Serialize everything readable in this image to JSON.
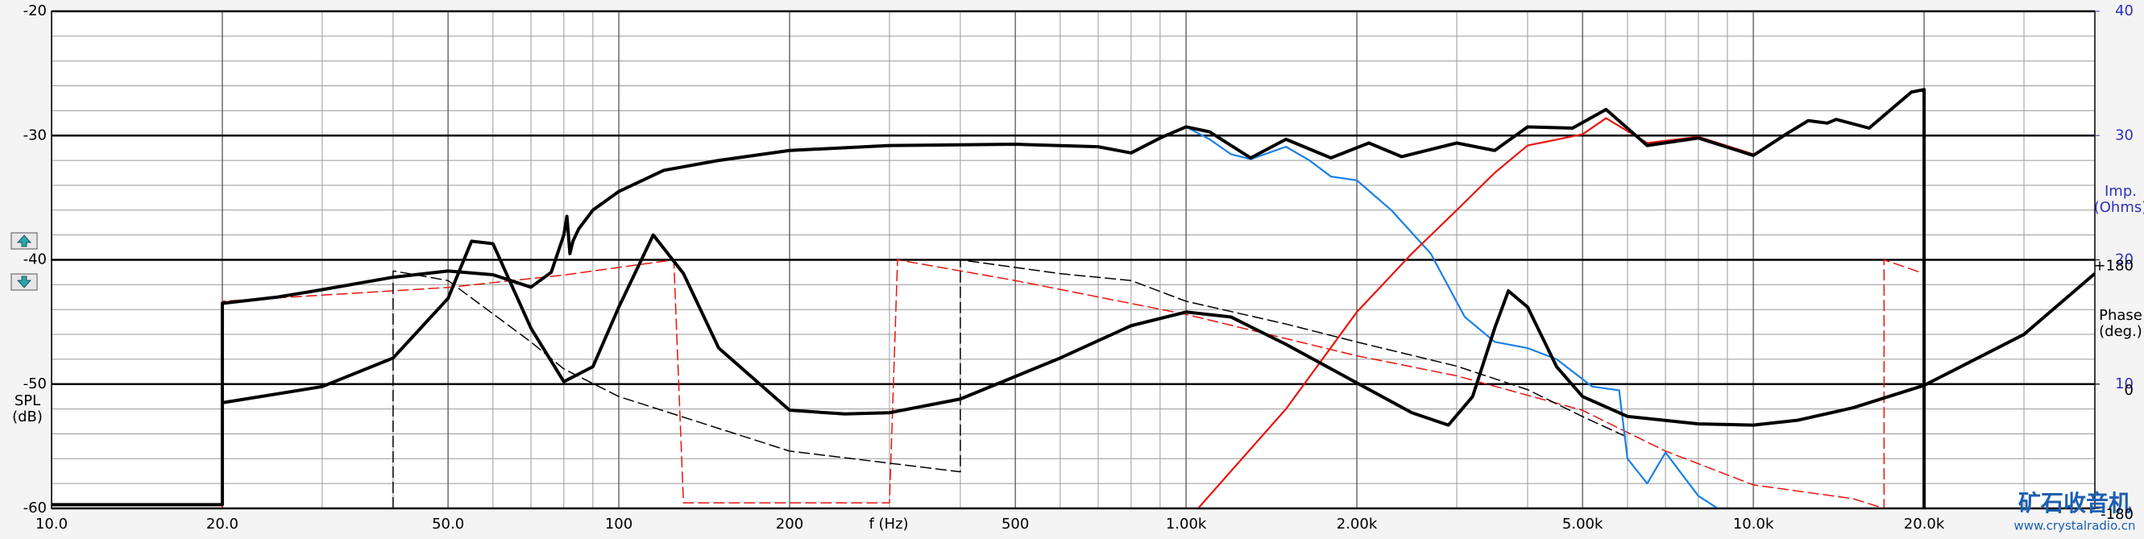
{
  "chart_data": {
    "type": "line",
    "x_label": "f (Hz)",
    "y_label": [
      "SPL",
      "(dB)"
    ],
    "y2_label": [
      "Imp.",
      "(Ohms)"
    ],
    "phase_label": [
      "Phase",
      "(deg.)"
    ],
    "watermark": [
      "矿石收音机",
      "www.crystalradio.cn"
    ],
    "log_x": true,
    "grid": true,
    "xlim": [
      10,
      40000
    ],
    "xticks": [
      {
        "value": 10,
        "label": "10.0"
      },
      {
        "value": 20,
        "label": "20.0"
      },
      {
        "value": 50,
        "label": "50.0"
      },
      100,
      200,
      500,
      {
        "value": 1000,
        "label": "1.00k"
      },
      {
        "value": 2000,
        "label": "2.00k"
      },
      {
        "value": 5000,
        "label": "5.00k"
      },
      {
        "value": 10000,
        "label": "10.0k"
      },
      {
        "value": 20000,
        "label": "20.0k"
      }
    ],
    "xgrid": [
      30,
      40,
      60,
      70,
      80,
      90,
      300,
      400,
      600,
      700,
      800,
      900,
      3000,
      4000,
      6000,
      7000,
      8000,
      9000,
      30000
    ],
    "ylim": [
      -60,
      -20
    ],
    "yticks": [
      -60,
      -50,
      -40,
      -30,
      -20
    ],
    "ygrid": [
      -58,
      -56,
      -54,
      -52,
      -48,
      -46,
      -44,
      -42,
      -38,
      -36,
      -34,
      -32,
      -28,
      -26,
      -24,
      -22
    ],
    "y2lim": [
      0,
      40
    ],
    "y2ticks": [
      10,
      20,
      30,
      40
    ],
    "phaselim": [
      -180,
      540
    ],
    "phaseticks": [
      {
        "value": 180,
        "label": "+180"
      },
      0,
      -180
    ],
    "series": [
      {
        "color": "#e8140c",
        "style": "dashed",
        "axis": "phase",
        "x": [
          20,
          20,
          50,
          80,
          125,
          130,
          300,
          310,
          500,
          1000,
          2000,
          3000,
          5000,
          7000,
          10000,
          15000,
          17000,
          17000,
          20000
        ],
        "values": [
          -180,
          120,
          140,
          158,
          180,
          -172,
          -172,
          180,
          150,
          101,
          41,
          12,
          -38,
          -97,
          -146,
          -166,
          -180,
          180,
          160
        ]
      },
      {
        "color": "#000000",
        "style": "dashed",
        "axis": "phase",
        "x": [
          40,
          40,
          50,
          70,
          80,
          100,
          200,
          400,
          400,
          600,
          800,
          1000,
          1500,
          2000,
          3000,
          4000,
          5000,
          6000
        ],
        "values": [
          -180,
          164,
          150,
          61,
          22,
          -18,
          -97,
          -127,
          180,
          160,
          150,
          120,
          87,
          61,
          26,
          -8,
          -47,
          -77
        ]
      },
      {
        "color": "#1a7fe6",
        "style": "solid",
        "x": [
          1000,
          1100,
          1200,
          1300,
          1500,
          1650,
          1800,
          2000,
          2300,
          2700,
          3100,
          3500,
          4000,
          4500,
          5200,
          5800,
          6000,
          6500,
          7000,
          8000,
          9000
        ],
        "values": [
          -29.3,
          -30.3,
          -31.5,
          -31.9,
          -30.9,
          -32,
          -33.3,
          -33.6,
          -36,
          -39.5,
          -44.6,
          -46.6,
          -47.1,
          -48,
          -50.2,
          -50.5,
          -56,
          -58,
          -55.5,
          -59,
          -60.5
        ]
      },
      {
        "color": "#e8140c",
        "style": "solid",
        "x": [
          1050,
          1200,
          1500,
          2000,
          2500,
          3000,
          3500,
          4000,
          5000,
          5500,
          6500,
          8000,
          10000
        ],
        "values": [
          -60,
          -57,
          -52,
          -44.2,
          -39.5,
          -36,
          -33,
          -30.8,
          -29.9,
          -28.6,
          -30.6,
          -30.1,
          -31.5
        ]
      },
      {
        "color": "#000000",
        "style": "thick",
        "x": [
          10,
          20,
          20,
          25,
          30,
          40,
          50,
          60,
          70,
          76,
          80,
          81,
          82,
          83,
          85,
          90,
          100,
          120,
          150,
          200,
          300,
          500,
          700,
          800,
          900,
          1000,
          1100,
          1300,
          1500,
          1800,
          2100,
          2400,
          3000,
          3500,
          4000,
          4800,
          5500,
          6500,
          8000,
          10000,
          11500,
          12500,
          13500,
          14000,
          16000,
          19000,
          20000,
          20000
        ],
        "values": [
          -59.7,
          -59.7,
          -43.5,
          -43,
          -42.4,
          -41.4,
          -40.9,
          -41.2,
          -42.2,
          -41,
          -38,
          -36.5,
          -39.5,
          -38.5,
          -37.5,
          -36,
          -34.5,
          -32.8,
          -32,
          -31.2,
          -30.8,
          -30.7,
          -30.9,
          -31.4,
          -30.2,
          -29.3,
          -29.7,
          -31.8,
          -30.3,
          -31.8,
          -30.6,
          -31.7,
          -30.6,
          -31.2,
          -29.3,
          -29.4,
          -27.9,
          -30.8,
          -30.2,
          -31.6,
          -29.8,
          -28.8,
          -29.0,
          -28.7,
          -29.4,
          -26.5,
          -26.3,
          -60
        ]
      },
      {
        "color": "#000000",
        "style": "thick",
        "axis": "y2",
        "x": [
          20,
          30,
          40,
          50,
          55,
          60,
          70,
          80,
          90,
          100,
          115,
          130,
          150,
          200,
          250,
          300,
          400,
          600,
          800,
          1000,
          1200,
          1500,
          2000,
          2500,
          2900,
          3200,
          3500,
          3700,
          4000,
          4500,
          5000,
          6000,
          8000,
          10000,
          12000,
          15000,
          20000,
          30000,
          40000
        ],
        "values": [
          8.5,
          9.8,
          12.1,
          16.9,
          21.5,
          21.3,
          14.5,
          10.2,
          11.4,
          16.2,
          22,
          18.9,
          12.9,
          7.9,
          7.6,
          7.7,
          8.8,
          12.1,
          14.7,
          15.8,
          15.4,
          13.2,
          10.1,
          7.7,
          6.7,
          9,
          14.5,
          17.5,
          16.2,
          11.4,
          9,
          7.4,
          6.8,
          6.7,
          7.1,
          8.1,
          9.9,
          14,
          18.9
        ]
      }
    ]
  }
}
